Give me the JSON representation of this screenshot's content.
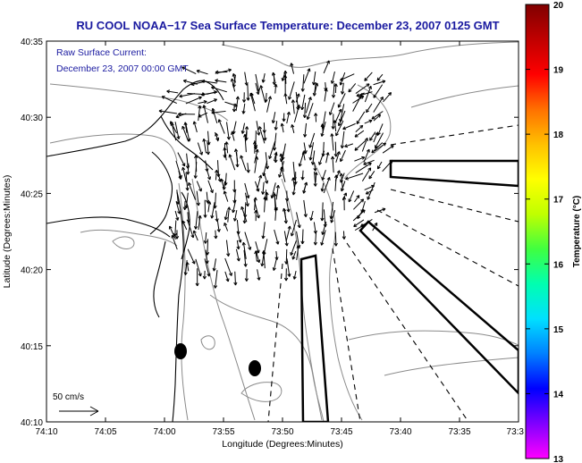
{
  "title": "RU COOL  NOAA−17  Sea Surface Temperature:  December 23, 2007 0125 GMT",
  "annotation": {
    "line1": "Raw Surface Current:",
    "line2": "December 23, 2007 00:00 GMT"
  },
  "scale_bar_label": "50 cm/s",
  "x_axis": {
    "label": "Longitude (Degrees:Minutes)",
    "ticks": [
      "74:10",
      "74:05",
      "74:00",
      "73:55",
      "73:50",
      "73:45",
      "73:40",
      "73:35",
      "73:3"
    ]
  },
  "y_axis": {
    "label": "Latitude (Degrees:Minutes)",
    "ticks": [
      "40:35",
      "40:30",
      "40:25",
      "40:20",
      "40:15",
      "40:10"
    ]
  },
  "colorbar": {
    "label": "Temperature (°C)",
    "ticks": [
      "20",
      "19",
      "18",
      "17",
      "16",
      "15",
      "14",
      "13"
    ],
    "colors": [
      "#ff00ff",
      "#8000ff",
      "#0000ff",
      "#0080ff",
      "#00e0ff",
      "#00ffb0",
      "#40ff40",
      "#c0ff00",
      "#ffff00",
      "#ffc000",
      "#ff7000",
      "#ff0000",
      "#c00000",
      "#800000"
    ]
  },
  "colors": {
    "title_text": "#1a1aa0",
    "coast": "#000000",
    "bathymetry": "#888888",
    "vectors": "#000000"
  }
}
